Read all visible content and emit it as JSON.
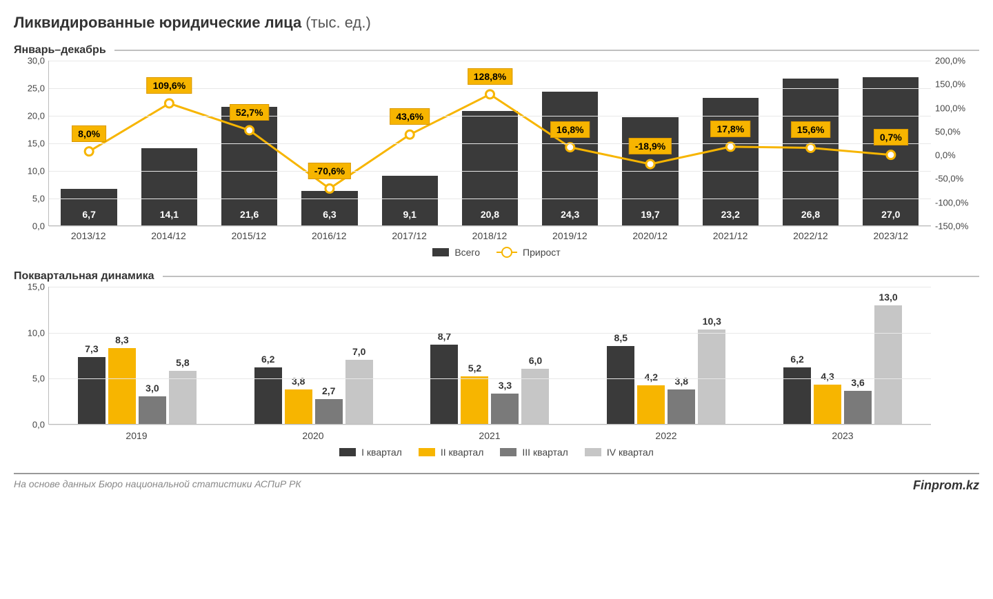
{
  "title": {
    "bold": "Ликвидированные юридические лица",
    "light": " (тыс. ед.)"
  },
  "top": {
    "subtitle": "Январь–декабрь",
    "y_left": {
      "min": 0,
      "max": 30,
      "step": 5
    },
    "y_right": {
      "min": -150,
      "max": 200,
      "step": 50
    },
    "categories": [
      "2013/12",
      "2014/12",
      "2015/12",
      "2016/12",
      "2017/12",
      "2018/12",
      "2019/12",
      "2020/12",
      "2021/12",
      "2022/12",
      "2023/12"
    ],
    "bars": {
      "values": [
        6.7,
        14.1,
        21.6,
        6.3,
        9.1,
        20.8,
        24.3,
        19.7,
        23.2,
        26.8,
        27.0
      ],
      "labels": [
        "6,7",
        "14,1",
        "21,6",
        "6,3",
        "9,1",
        "20,8",
        "24,3",
        "19,7",
        "23,2",
        "26,8",
        "27,0"
      ],
      "color": "#3a3a3a"
    },
    "growth": {
      "values": [
        8.0,
        109.6,
        52.7,
        -70.6,
        43.6,
        128.8,
        16.8,
        -18.9,
        17.8,
        15.6,
        0.7
      ],
      "labels": [
        "8,0%",
        "109,6%",
        "52,7%",
        "-70,6%",
        "43,6%",
        "128,8%",
        "16,8%",
        "-18,9%",
        "17,8%",
        "15,6%",
        "0,7%"
      ],
      "line_color": "#f7b500",
      "tag_bg": "#f7b500",
      "marker_fill": "#ffffff"
    },
    "legend": {
      "bars": "Всего",
      "line": "Прирост"
    }
  },
  "bottom": {
    "subtitle": "Поквартальная динамика",
    "y": {
      "min": 0,
      "max": 15,
      "step": 5
    },
    "years": [
      "2019",
      "2020",
      "2021",
      "2022",
      "2023"
    ],
    "series": [
      {
        "name": "I квартал",
        "color": "#3a3a3a",
        "values": [
          7.3,
          6.2,
          8.7,
          8.5,
          6.2
        ],
        "labels": [
          "7,3",
          "6,2",
          "8,7",
          "8,5",
          "6,2"
        ]
      },
      {
        "name": "II квартал",
        "color": "#f7b500",
        "values": [
          8.3,
          3.8,
          5.2,
          4.2,
          4.3
        ],
        "labels": [
          "8,3",
          "3,8",
          "5,2",
          "4,2",
          "4,3"
        ]
      },
      {
        "name": "III квартал",
        "color": "#7a7a7a",
        "values": [
          3.0,
          2.7,
          3.3,
          3.8,
          3.6
        ],
        "labels": [
          "3,0",
          "2,7",
          "3,3",
          "3,8",
          "3,6"
        ]
      },
      {
        "name": "IV квартал",
        "color": "#c6c6c6",
        "values": [
          5.8,
          7.0,
          6.0,
          10.3,
          13.0
        ],
        "labels": [
          "5,8",
          "7,0",
          "6,0",
          "10,3",
          "13,0"
        ]
      }
    ]
  },
  "footer": {
    "source": "На основе данных Бюро национальной статистики АСПиР РК",
    "brand": "Finprom.kz"
  },
  "colors": {
    "grid": "#e8e8e8",
    "axis": "#bbbbbb",
    "text": "#444444"
  }
}
